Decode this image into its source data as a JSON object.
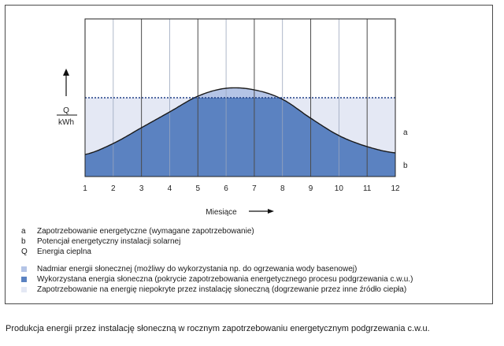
{
  "chart_data": {
    "type": "area",
    "title": "",
    "xlabel": "Miesiące",
    "ylabel": "Q / kWh",
    "ylabel_top": "Q",
    "ylabel_bottom": "kWh",
    "x": [
      1,
      2,
      3,
      4,
      5,
      6,
      7,
      8,
      9,
      10,
      11,
      12
    ],
    "x_tick_labels": [
      "1",
      "2",
      "3",
      "4",
      "5",
      "6",
      "7",
      "8",
      "9",
      "10",
      "11",
      "12"
    ],
    "xlim": [
      1,
      12
    ],
    "ylim": [
      0,
      5
    ],
    "grid": "vertical",
    "series": [
      {
        "name": "a",
        "values": [
          2.5,
          2.5,
          2.5,
          2.5,
          2.5,
          2.5,
          2.5,
          2.5,
          2.5,
          2.5,
          2.5,
          2.5
        ],
        "style": "dotted",
        "color": "#1f3f86"
      },
      {
        "name": "b",
        "values": [
          0.7,
          1.05,
          1.55,
          2.05,
          2.55,
          2.8,
          2.75,
          2.45,
          1.85,
          1.3,
          0.95,
          0.75
        ],
        "style": "solid",
        "color": "#1a1a1a"
      }
    ],
    "fills": {
      "surplus": "#b4c4e6",
      "used": "#5b82c1",
      "uncovered": "#e4e8f4"
    }
  },
  "axis": {
    "unit_top": "Q",
    "unit_bottom": "kWh",
    "x_title": "Miesiące"
  },
  "legend": {
    "symbols": [
      {
        "key": "a",
        "text": "Zapotrzebowanie energetyczne (wymagane zapotrzebowanie)"
      },
      {
        "key": "b",
        "text": "Potencjał energetyczny instalacji solarnej"
      },
      {
        "key": "Q",
        "text": "Energia cieplna"
      }
    ],
    "colors": [
      {
        "color": "#b4c4e6",
        "text": "Nadmiar energii słonecznej (możliwy do wykorzystania np. do ogrzewania wody basenowej)"
      },
      {
        "color": "#5b82c1",
        "text": "Wykorzystana energia słoneczna (pokrycie zapotrzebowania energetycznego procesu podgrzewania c.w.u.)"
      },
      {
        "color": "#e4e8f4",
        "text": "Zapotrzebowanie na energię niepokryte przez instalację słoneczną (dogrzewanie przez inne źródło ciepła)"
      }
    ]
  },
  "caption": "Produkcja energii przez instalację słoneczną w rocznym zapotrzebowaniu energetycznym podgrzewania c.w.u."
}
